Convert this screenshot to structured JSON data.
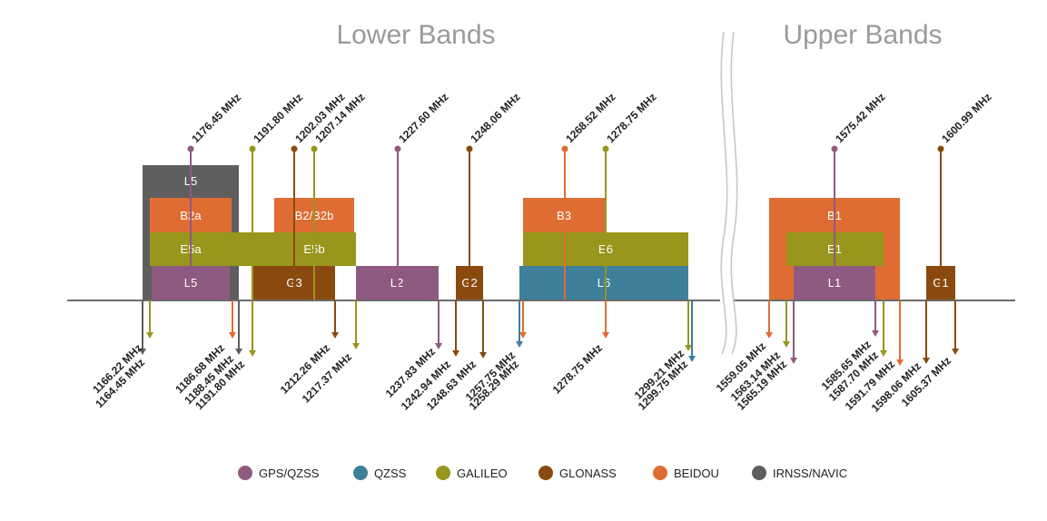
{
  "colors": {
    "gps": "#8f5a80",
    "qzss": "#3e7f9a",
    "galileo": "#98961c",
    "glonass": "#8a4a0f",
    "beidou": "#df6d33",
    "irnss": "#5e5e5e"
  },
  "titles": {
    "lower": "Lower Bands",
    "upper": "Upper Bands"
  },
  "bands": [
    {
      "label": "L5",
      "system": "irnss"
    },
    {
      "label": "B2a",
      "system": "beidou"
    },
    {
      "label": "B2/B2b",
      "system": "beidou"
    },
    {
      "label": "E5a",
      "system": "galileo"
    },
    {
      "label": "E5b",
      "system": "galileo"
    },
    {
      "label": "L5",
      "system": "gps"
    },
    {
      "label": "G3",
      "system": "glonass"
    },
    {
      "label": "L2",
      "system": "gps"
    },
    {
      "label": "G2",
      "system": "glonass"
    },
    {
      "label": "B3",
      "system": "beidou"
    },
    {
      "label": "E6",
      "system": "galileo"
    },
    {
      "label": "L6",
      "system": "qzss"
    },
    {
      "label": "B1",
      "system": "beidou"
    },
    {
      "label": "E1",
      "system": "galileo"
    },
    {
      "label": "L1",
      "system": "gps"
    },
    {
      "label": "G1",
      "system": "glonass"
    }
  ],
  "center_frequencies": [
    {
      "label": "1176.45 MHz",
      "system": "gps"
    },
    {
      "label": "1191.80 MHz",
      "system": "galileo"
    },
    {
      "label": "1202.03 MHz",
      "system": "glonass"
    },
    {
      "label": "1207.14 MHz",
      "system": "galileo"
    },
    {
      "label": "1227.60 MHz",
      "system": "gps"
    },
    {
      "label": "1248.06 MHz",
      "system": "glonass"
    },
    {
      "label": "1268.52 MHz",
      "system": "beidou"
    },
    {
      "label": "1278.75 MHz",
      "system": "galileo"
    },
    {
      "label": "1575.42 MHz",
      "system": "gps"
    },
    {
      "label": "1600.99 MHz",
      "system": "glonass"
    }
  ],
  "edge_frequencies": [
    {
      "label": "1166.22 MHz",
      "system": "irnss"
    },
    {
      "label": "1164.45 MHz",
      "system": "galileo"
    },
    {
      "label": "1186.68 MHz",
      "system": "beidou"
    },
    {
      "label": "1188.45 MHz",
      "system": "irnss"
    },
    {
      "label": "1191.80 MHz",
      "system": "galileo"
    },
    {
      "label": "1212.26 MHz",
      "system": "glonass"
    },
    {
      "label": "1217.37 MHz",
      "system": "galileo"
    },
    {
      "label": "1237.83 MHz",
      "system": "gps"
    },
    {
      "label": "1242.94 MHz",
      "system": "glonass"
    },
    {
      "label": "1248.63 MHz",
      "system": "glonass"
    },
    {
      "label": "1257.75 MHz",
      "system": "qzss"
    },
    {
      "label": "1258.29 MHz",
      "system": "beidou"
    },
    {
      "label": "1278.75 MHz",
      "system": "beidou"
    },
    {
      "label": "1299.21 MHz",
      "system": "galileo"
    },
    {
      "label": "1299.75 MHz",
      "system": "qzss"
    },
    {
      "label": "1559.05 MHz",
      "system": "beidou"
    },
    {
      "label": "1563.14 MHz",
      "system": "galileo"
    },
    {
      "label": "1565.19 MHz",
      "system": "gps"
    },
    {
      "label": "1585.65 MHz",
      "system": "gps"
    },
    {
      "label": "1587.70 MHz",
      "system": "galileo"
    },
    {
      "label": "1591.79 MHz",
      "system": "beidou"
    },
    {
      "label": "1598.06 MHz",
      "system": "glonass"
    },
    {
      "label": "1605.37 MHz",
      "system": "glonass"
    }
  ],
  "legend": [
    {
      "label": "GPS/QZSS",
      "system": "gps"
    },
    {
      "label": "QZSS",
      "system": "qzss"
    },
    {
      "label": "GALILEO",
      "system": "galileo"
    },
    {
      "label": "GLONASS",
      "system": "glonass"
    },
    {
      "label": "BEIDOU",
      "system": "beidou"
    },
    {
      "label": "IRNSS/NAVIC",
      "system": "irnss"
    }
  ]
}
